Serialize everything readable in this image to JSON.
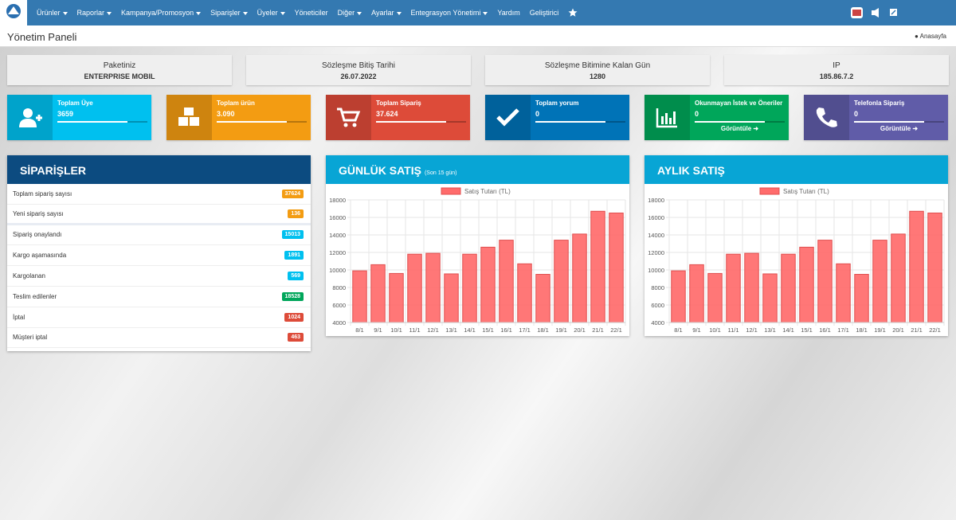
{
  "nav": {
    "items": [
      {
        "label": "Ürünler",
        "menu": true
      },
      {
        "label": "Raporlar",
        "menu": true
      },
      {
        "label": "Kampanya/Promosyon",
        "menu": true
      },
      {
        "label": "Siparişler",
        "menu": true
      },
      {
        "label": "Üyeler",
        "menu": true
      },
      {
        "label": "Yöneticiler",
        "menu": false
      },
      {
        "label": "Diğer",
        "menu": true
      },
      {
        "label": "Ayarlar",
        "menu": true
      },
      {
        "label": "Entegrasyon Yönetimi",
        "menu": true
      },
      {
        "label": "Yardım",
        "menu": false
      },
      {
        "label": "Geliştirici",
        "menu": false
      }
    ]
  },
  "header": {
    "title": "Yönetim Paneli",
    "home": "Anasayfa"
  },
  "info_boxes": [
    {
      "title": "Paketiniz",
      "value": "ENTERPRISE MOBIL"
    },
    {
      "title": "Sözleşme Bitiş Tarihi",
      "value": "26.07.2022"
    },
    {
      "title": "Sözleşme Bitimine Kalan Gün",
      "value": "1280"
    },
    {
      "title": "IP",
      "value": "185.86.7.2"
    }
  ],
  "stat_boxes": [
    {
      "label": "Toplam Üye",
      "value": "3659",
      "color": "#00c0ef"
    },
    {
      "label": "Toplam ürün",
      "value": "3.090",
      "color": "#f39c12"
    },
    {
      "label": "Toplam Sipariş",
      "value": "37.624",
      "color": "#dd4b39"
    },
    {
      "label": "Toplam yorum",
      "value": "0",
      "color": "#0073b7"
    },
    {
      "label": "Okunmayan İstek ve Öneriler",
      "value": "0",
      "color": "#00a65a",
      "link": "Görüntüle"
    },
    {
      "label": "Telefonla Sipariş",
      "value": "0",
      "color": "#605ca8",
      "link": "Görüntüle"
    }
  ],
  "orders": {
    "title": "SİPARİŞLER",
    "rows": [
      {
        "label": "Toplam sipariş sayısı",
        "count": 37624,
        "color": "#f39c12"
      },
      {
        "label": "Yeni sipariş sayısı",
        "count": 136,
        "color": "#f39c12"
      },
      {
        "label": "Sipariş onaylandı",
        "count": 15013,
        "color": "#00c0ef"
      },
      {
        "label": "Kargo aşamasında",
        "count": 1891,
        "color": "#00c0ef"
      },
      {
        "label": "Kargolanan",
        "count": 569,
        "color": "#00c0ef"
      },
      {
        "label": "Teslim edilenler",
        "count": 18528,
        "color": "#00a65a"
      },
      {
        "label": "İptal",
        "count": 1024,
        "color": "#dd4b39"
      },
      {
        "label": "Müşteri iptal",
        "count": 463,
        "color": "#dd4b39"
      }
    ]
  },
  "chart_data": [
    {
      "type": "bar",
      "title": "GÜNLÜK SATIŞ",
      "subtitle": "(Son 15 gün)",
      "categories": [
        "8/1",
        "9/1",
        "10/1",
        "11/1",
        "12/1",
        "13/1",
        "14/1",
        "15/1",
        "16/1",
        "17/1",
        "18/1",
        "19/1",
        "20/1",
        "21/1",
        "22/1"
      ],
      "series": [
        {
          "name": "Satış Tutarı (TL)",
          "color": "#ff6b6b",
          "values": [
            9900,
            10600,
            9600,
            11800,
            11900,
            9550,
            11800,
            12600,
            13400,
            10700,
            9500,
            13400,
            14100,
            16700,
            16500
          ]
        }
      ],
      "ylim": [
        4000,
        18000
      ],
      "yticks": [
        4000,
        6000,
        8000,
        10000,
        12000,
        14000,
        16000,
        18000
      ],
      "grid": true
    },
    {
      "type": "bar",
      "title": "AYLIK SATIŞ",
      "categories": [
        "8/1",
        "9/1",
        "10/1",
        "11/1",
        "12/1",
        "13/1",
        "14/1",
        "15/1",
        "16/1",
        "17/1",
        "18/1",
        "19/1",
        "20/1",
        "21/1",
        "22/1"
      ],
      "series": [
        {
          "name": "Satış Tutarı (TL)",
          "color": "#ff6b6b",
          "values": [
            9900,
            10600,
            9600,
            11800,
            11900,
            9550,
            11800,
            12600,
            13400,
            10700,
            9500,
            13400,
            14100,
            16700,
            16500
          ]
        }
      ],
      "ylim": [
        4000,
        18000
      ],
      "yticks": [
        4000,
        6000,
        8000,
        10000,
        12000,
        14000,
        16000,
        18000
      ],
      "grid": true
    }
  ]
}
